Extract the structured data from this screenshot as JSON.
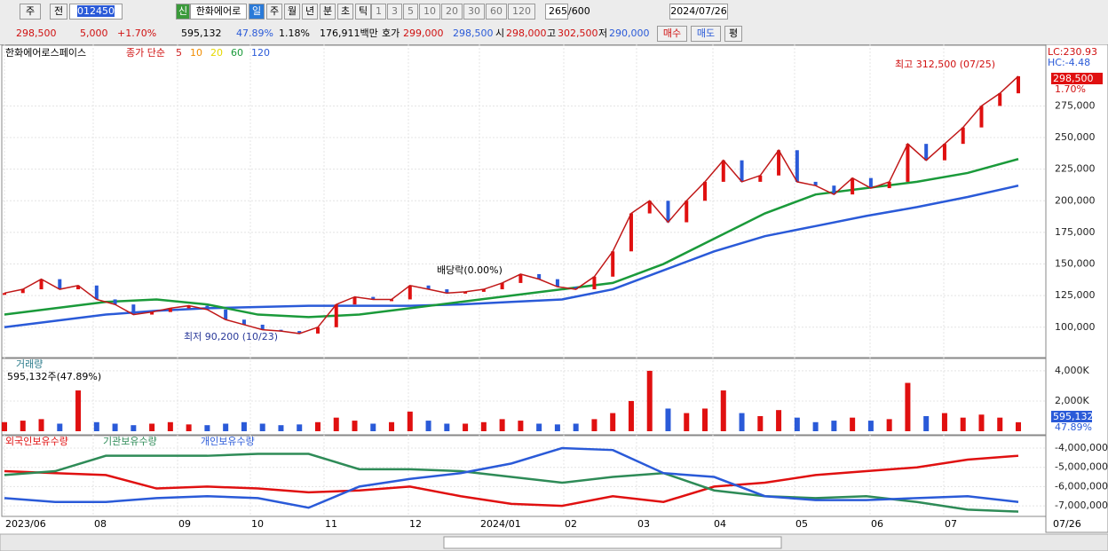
{
  "toolbar": {
    "market": "주",
    "prev": "전",
    "code": "012450",
    "name": "한화에어로",
    "new": "신",
    "periods": [
      "일",
      "주",
      "월",
      "년",
      "분",
      "초",
      "틱"
    ],
    "minutes": [
      "1",
      "3",
      "5",
      "10",
      "20",
      "30",
      "60",
      "120"
    ],
    "count": "265",
    "max": "/600",
    "date": "2024/07/26"
  },
  "quote": {
    "price": "298,500",
    "change": "5,000",
    "rate": "+1.70%",
    "volume": "595,132",
    "turnover": "47.89%",
    "ratio": "1.18%",
    "amount": "176,911백만",
    "bid_label": "호가",
    "bid": "299,000",
    "ask": "298,500",
    "open_label": "시",
    "open": "298,000",
    "high_label": "고",
    "high": "302,500",
    "low_label": "저",
    "low": "290,000",
    "buy": "매수",
    "sell": "매도",
    "avg": "평"
  },
  "chart_data": {
    "type": "stock",
    "price": {
      "legend": "한화에어로스페이스",
      "ma_label": "종가 단순",
      "ma_periods": [
        {
          "label": "5",
          "color": "#d02020"
        },
        {
          "label": "10",
          "color": "#f08c00"
        },
        {
          "label": "20",
          "color": "#e6d800"
        },
        {
          "label": "60",
          "color": "#1a9a3a"
        },
        {
          "label": "120",
          "color": "#2a5ad8"
        }
      ],
      "close": [
        127000,
        130000,
        138000,
        130000,
        133000,
        122000,
        118000,
        110000,
        112000,
        115000,
        117000,
        114000,
        106000,
        102000,
        98000,
        97000,
        95000,
        100000,
        118000,
        124000,
        122000,
        122000,
        133000,
        130000,
        127000,
        128000,
        130000,
        135000,
        142000,
        138000,
        132000,
        130000,
        140000,
        160000,
        190000,
        200000,
        183000,
        200000,
        215000,
        232000,
        215000,
        220000,
        240000,
        215000,
        212000,
        205000,
        218000,
        210000,
        215000,
        245000,
        232000,
        245000,
        258000,
        275000,
        285000,
        298500
      ],
      "ma60": [
        110000,
        115000,
        120000,
        122000,
        118000,
        110000,
        108000,
        110000,
        115000,
        120000,
        125000,
        130000,
        135000,
        150000,
        170000,
        190000,
        205000,
        210000,
        215000,
        222000,
        233000
      ],
      "ma120": [
        100000,
        105000,
        110000,
        113000,
        115000,
        116000,
        117000,
        117000,
        117000,
        118000,
        120000,
        122000,
        130000,
        145000,
        160000,
        172000,
        180000,
        188000,
        195000,
        203000,
        212000
      ],
      "ylim": [
        76000,
        323700
      ],
      "yticks": [
        {
          "value": 100000,
          "label": "100,000"
        },
        {
          "value": 125000,
          "label": "125,000"
        },
        {
          "value": 150000,
          "label": "150,000"
        },
        {
          "value": 175000,
          "label": "175,000"
        },
        {
          "value": 200000,
          "label": "200,000"
        },
        {
          "value": 225000,
          "label": "225,000"
        },
        {
          "value": 250000,
          "label": "250,000"
        },
        {
          "value": 275000,
          "label": "275,000"
        }
      ],
      "high_note": "최고 312,500 (07/25)",
      "low_note": "최저 90,200 (10/23)",
      "dividend_note": "배당락(0.00%)",
      "lc": "LC:230.93",
      "hc": "HC:-4.48",
      "last": "298,500",
      "last_rate": "1.70%"
    },
    "volume": {
      "title": "거래량",
      "info": "595,132주(47.89%)",
      "last": "595,132",
      "last_rate": "47.89%",
      "values": [
        600,
        700,
        800,
        500,
        2700,
        600,
        500,
        400,
        500,
        600,
        450,
        400,
        500,
        600,
        500,
        400,
        450,
        600,
        900,
        700,
        500,
        600,
        1300,
        700,
        500,
        500,
        600,
        800,
        700,
        500,
        450,
        500,
        800,
        1200,
        2000,
        4000,
        1500,
        1200,
        1500,
        2700,
        1200,
        1000,
        1400,
        900,
        600,
        700,
        900,
        700,
        800,
        3200,
        1000,
        1200,
        900,
        1100,
        900,
        595
      ],
      "ylim": [
        0,
        4700
      ],
      "yticks": [
        {
          "value": 2000,
          "label": "2,000K"
        },
        {
          "value": 4000,
          "label": "4,000K"
        }
      ]
    },
    "holdings": {
      "series": [
        {
          "name": "외국인보유수량",
          "color": "#e01010",
          "values": [
            -5200000,
            -5300000,
            -5400000,
            -6100000,
            -6000000,
            -6100000,
            -6300000,
            -6200000,
            -6000000,
            -6500000,
            -6900000,
            -7000000,
            -6500000,
            -6800000,
            -6000000,
            -5800000,
            -5400000,
            -5200000,
            -5000000,
            -4600000,
            -4400000
          ]
        },
        {
          "name": "기관보유수량",
          "color": "#2e8b57",
          "values": [
            -5400000,
            -5200000,
            -4400000,
            -4400000,
            -4400000,
            -4300000,
            -4300000,
            -5100000,
            -5100000,
            -5200000,
            -5500000,
            -5800000,
            -5500000,
            -5300000,
            -6200000,
            -6500000,
            -6600000,
            -6500000,
            -6800000,
            -7200000,
            -7300000
          ]
        },
        {
          "name": "개인보유수량",
          "color": "#2a5ad8",
          "values": [
            -6600000,
            -6800000,
            -6800000,
            -6600000,
            -6500000,
            -6600000,
            -7100000,
            -6000000,
            -5600000,
            -5300000,
            -4800000,
            -4000000,
            -4100000,
            -5300000,
            -5500000,
            -6500000,
            -6700000,
            -6700000,
            -6600000,
            -6500000,
            -6800000
          ]
        }
      ],
      "ylim": [
        -7550000,
        -3400000
      ],
      "yticks": [
        {
          "value": -4000000,
          "label": "-4,000,000"
        },
        {
          "value": -5000000,
          "label": "-5,000,000"
        },
        {
          "value": -6000000,
          "label": "-6,000,000"
        },
        {
          "value": -7000000,
          "label": "-7,000,000"
        }
      ]
    },
    "months": [
      "2023/06",
      "08",
      "09",
      "10",
      "11",
      "12",
      "2024/01",
      "02",
      "03",
      "04",
      "05",
      "06",
      "07"
    ],
    "axis_end": "07/26"
  }
}
